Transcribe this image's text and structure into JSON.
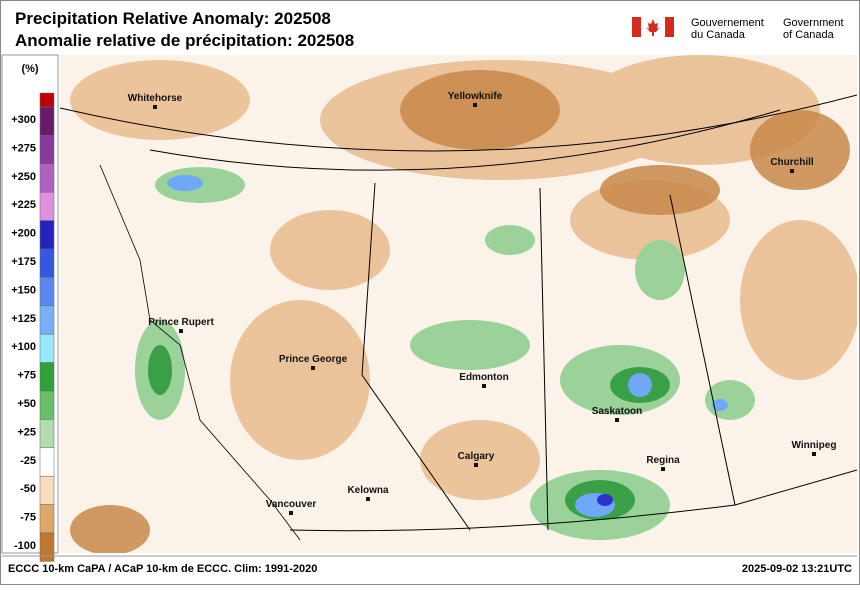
{
  "header": {
    "title_en": "Precipitation Relative Anomaly: 202508",
    "title_fr": "Anomalie relative de précipitation: 202508"
  },
  "government": {
    "fr": [
      "Gouvernement",
      "du Canada"
    ],
    "en": [
      "Government",
      "of Canada"
    ]
  },
  "legend": {
    "unit": "(%)",
    "labels": [
      "+300",
      "+275",
      "+250",
      "+225",
      "+200",
      "+175",
      "+150",
      "+125",
      "+100",
      "+75",
      "+50",
      "+25",
      "-25",
      "-50",
      "-75",
      "-100"
    ]
  },
  "cities": [
    "Whitehorse",
    "Yellowknife",
    "Churchill",
    "Prince Rupert",
    "Prince George",
    "Edmonton",
    "Saskatoon",
    "Regina",
    "Calgary",
    "Winnipeg",
    "Kelowna",
    "Vancouver"
  ],
  "footer": {
    "left": "ECCC 10-km CaPA / ACaP 10-km de ECCC. Clim: 1991-2020",
    "right": "2025-09-02 13:21UTC"
  }
}
